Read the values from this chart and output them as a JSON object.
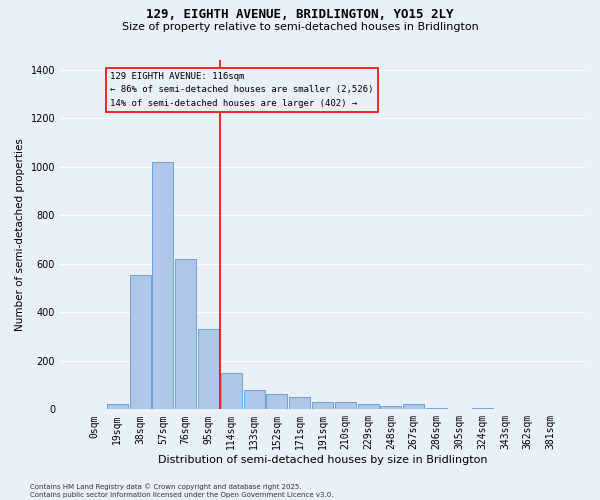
{
  "title": "129, EIGHTH AVENUE, BRIDLINGTON, YO15 2LY",
  "subtitle": "Size of property relative to semi-detached houses in Bridlington",
  "xlabel": "Distribution of semi-detached houses by size in Bridlington",
  "ylabel": "Number of semi-detached properties",
  "footnote": "Contains HM Land Registry data © Crown copyright and database right 2025.\nContains public sector information licensed under the Open Government Licence v3.0.",
  "bar_labels": [
    "0sqm",
    "19sqm",
    "38sqm",
    "57sqm",
    "76sqm",
    "95sqm",
    "114sqm",
    "133sqm",
    "152sqm",
    "171sqm",
    "191sqm",
    "210sqm",
    "229sqm",
    "248sqm",
    "267sqm",
    "286sqm",
    "305sqm",
    "324sqm",
    "343sqm",
    "362sqm",
    "381sqm"
  ],
  "bar_values": [
    0,
    20,
    555,
    1020,
    620,
    330,
    150,
    80,
    65,
    50,
    30,
    30,
    20,
    15,
    20,
    5,
    0,
    5,
    0,
    0,
    0
  ],
  "bar_color": "#aec6e8",
  "bar_edge_color": "#5b9bd5",
  "bg_color": "#eaf0f8",
  "grid_color": "#ffffff",
  "vline_color": "red",
  "annotation_text": "129 EIGHTH AVENUE: 116sqm\n← 86% of semi-detached houses are smaller (2,526)\n14% of semi-detached houses are larger (402) →",
  "annotation_box_color": "red",
  "ylim": [
    0,
    1440
  ],
  "yticks": [
    0,
    200,
    400,
    600,
    800,
    1000,
    1200,
    1400
  ],
  "title_fontsize": 9,
  "subtitle_fontsize": 8,
  "ylabel_fontsize": 7.5,
  "xlabel_fontsize": 8,
  "tick_fontsize": 7,
  "annot_fontsize": 6.5,
  "footnote_fontsize": 5
}
